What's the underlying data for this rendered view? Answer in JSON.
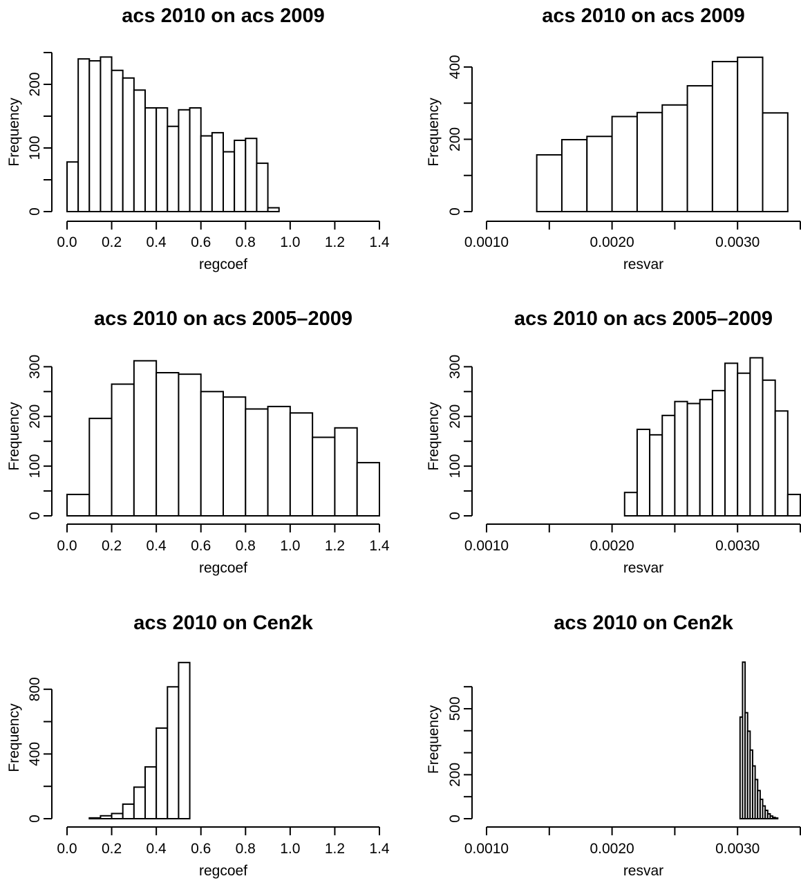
{
  "chart_data": [
    {
      "type": "bar",
      "title": "acs 2010 on acs 2009",
      "xlabel": "regcoef",
      "ylabel": "Frequency",
      "x_ticks": [
        "0.0",
        "0.2",
        "0.4",
        "0.6",
        "0.8",
        "1.0",
        "1.2",
        "1.4"
      ],
      "y_ticks": [
        "0",
        "100",
        "200"
      ],
      "xlim": [
        0,
        1.4
      ],
      "ylim": [
        0,
        250
      ],
      "bin_edges": [
        0.0,
        0.05,
        0.1,
        0.15,
        0.2,
        0.25,
        0.3,
        0.35,
        0.4,
        0.45,
        0.5,
        0.55,
        0.6,
        0.65,
        0.7,
        0.75,
        0.8,
        0.85,
        0.9,
        0.95
      ],
      "values": [
        78,
        240,
        237,
        243,
        222,
        210,
        191,
        163,
        163,
        134,
        160,
        163,
        119,
        124,
        94,
        112,
        115,
        76,
        6
      ]
    },
    {
      "type": "bar",
      "title": "acs 2010 on acs 2009",
      "xlabel": "resvar",
      "ylabel": "Frequency",
      "x_ticks": [
        "0.0010",
        "0.0020",
        "0.0030"
      ],
      "y_ticks": [
        "0",
        "200",
        "400"
      ],
      "xlim": [
        0.001,
        0.0035
      ],
      "ylim": [
        0,
        440
      ],
      "bin_edges": [
        0.0014,
        0.0016,
        0.0018,
        0.002,
        0.0022,
        0.0024,
        0.0026,
        0.0028,
        0.003,
        0.0032,
        0.0034
      ],
      "values": [
        157,
        199,
        208,
        263,
        274,
        295,
        348,
        415,
        427,
        273
      ]
    },
    {
      "type": "bar",
      "title": "acs 2010 on acs 2005–2009",
      "xlabel": "regcoef",
      "ylabel": "Frequency",
      "x_ticks": [
        "0.0",
        "0.2",
        "0.4",
        "0.6",
        "0.8",
        "1.0",
        "1.2",
        "1.4"
      ],
      "y_ticks": [
        "0",
        "100",
        "200",
        "300"
      ],
      "xlim": [
        0,
        1.4
      ],
      "ylim": [
        0,
        320
      ],
      "bin_edges": [
        0.0,
        0.1,
        0.2,
        0.3,
        0.4,
        0.5,
        0.6,
        0.7,
        0.8,
        0.9,
        1.0,
        1.1,
        1.2,
        1.3,
        1.4
      ],
      "values": [
        43,
        196,
        265,
        312,
        288,
        285,
        250,
        239,
        215,
        220,
        207,
        158,
        177,
        107
      ]
    },
    {
      "type": "bar",
      "title": "acs 2010 on acs 2005–2009",
      "xlabel": "resvar",
      "ylabel": "Frequency",
      "x_ticks": [
        "0.0010",
        "0.0020",
        "0.0030"
      ],
      "y_ticks": [
        "0",
        "100",
        "200",
        "300"
      ],
      "xlim": [
        0.001,
        0.0035
      ],
      "ylim": [
        0,
        320
      ],
      "bin_edges": [
        0.0021,
        0.0022,
        0.0023,
        0.0024,
        0.0025,
        0.0026,
        0.0027,
        0.0028,
        0.0029,
        0.003,
        0.0031,
        0.0032,
        0.0033,
        0.0034,
        0.0035
      ],
      "values": [
        47,
        174,
        163,
        202,
        230,
        226,
        234,
        252,
        307,
        287,
        318,
        273,
        211,
        43
      ]
    },
    {
      "type": "bar",
      "title": "acs 2010 on Cen2k",
      "xlabel": "regcoef",
      "ylabel": "Frequency",
      "x_ticks": [
        "0.0",
        "0.2",
        "0.4",
        "0.6",
        "0.8",
        "1.0",
        "1.2",
        "1.4"
      ],
      "y_ticks": [
        "0",
        "400",
        "800"
      ],
      "xlim": [
        0,
        1.4
      ],
      "ylim": [
        0,
        1000
      ],
      "bin_edges": [
        0.1,
        0.15,
        0.2,
        0.25,
        0.3,
        0.35,
        0.4,
        0.45,
        0.5,
        0.55
      ],
      "values": [
        5,
        18,
        32,
        90,
        195,
        320,
        560,
        815,
        965
      ]
    },
    {
      "type": "bar",
      "title": "acs 2010 on Cen2k",
      "xlabel": "resvar",
      "ylabel": "Frequency",
      "x_ticks": [
        "0.0010",
        "0.0020",
        "0.0030"
      ],
      "y_ticks": [
        "0",
        "200",
        "500"
      ],
      "xlim": [
        0.001,
        0.0035
      ],
      "ylim": [
        0,
        720
      ],
      "bin_edges": [
        0.00302,
        0.00304,
        0.00306,
        0.00308,
        0.0031,
        0.00312,
        0.00314,
        0.00316,
        0.00318,
        0.0032,
        0.00322,
        0.00324,
        0.00326,
        0.00328,
        0.0033,
        0.00332
      ],
      "values": [
        462,
        712,
        482,
        398,
        312,
        240,
        178,
        128,
        88,
        58,
        38,
        22,
        12,
        6,
        3
      ]
    }
  ]
}
